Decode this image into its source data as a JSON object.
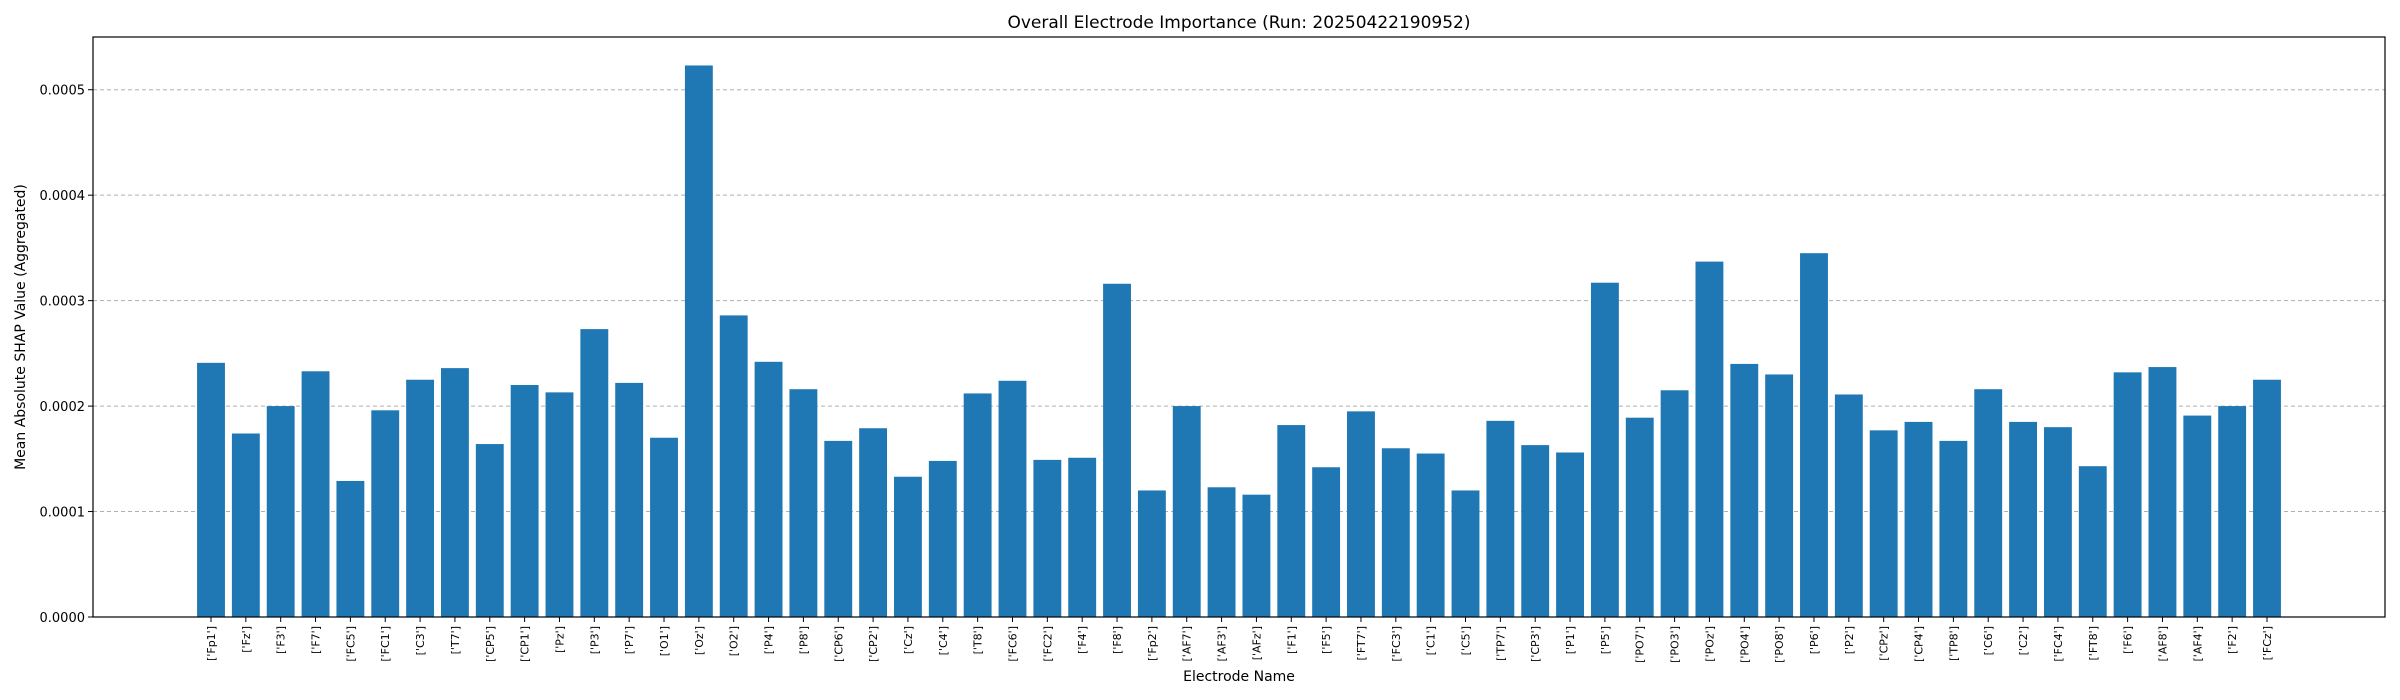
{
  "chart_data": {
    "type": "bar",
    "title": "Overall Electrode Importance (Run: 20250422190952)",
    "xlabel": "Electrode Name",
    "ylabel": "Mean Absolute SHAP Value (Aggregated)",
    "ylim": [
      0,
      0.00055
    ],
    "yticks": [
      "0.0000",
      "0.0001",
      "0.0002",
      "0.0003",
      "0.0004",
      "0.0005"
    ],
    "ytick_values": [
      0,
      0.0001,
      0.0002,
      0.0003,
      0.0004,
      0.0005
    ],
    "grid": true,
    "bar_color": "#1f77b4",
    "categories": [
      "['Fp1']",
      "['Fz']",
      "['F3']",
      "['F7']",
      "['FC5']",
      "['FC1']",
      "['C3']",
      "['T7']",
      "['CP5']",
      "['CP1']",
      "['Pz']",
      "['P3']",
      "['P7']",
      "['O1']",
      "['Oz']",
      "['O2']",
      "['P4']",
      "['P8']",
      "['CP6']",
      "['CP2']",
      "['Cz']",
      "['C4']",
      "['T8']",
      "['FC6']",
      "['FC2']",
      "['F4']",
      "['F8']",
      "['Fp2']",
      "['AF7']",
      "['AF3']",
      "['AFz']",
      "['F1']",
      "['F5']",
      "['FT7']",
      "['FC3']",
      "['C1']",
      "['C5']",
      "['TP7']",
      "['CP3']",
      "['P1']",
      "['P5']",
      "['PO7']",
      "['PO3']",
      "['POz']",
      "['PO4']",
      "['PO8']",
      "['P6']",
      "['P2']",
      "['CPz']",
      "['CP4']",
      "['TP8']",
      "['C6']",
      "['C2']",
      "['FC4']",
      "['FT8']",
      "['F6']",
      "['AF8']",
      "['AF4']",
      "['F2']",
      "['FCz']"
    ],
    "values": [
      0.000241,
      0.000174,
      0.0002,
      0.000233,
      0.000129,
      0.000196,
      0.000225,
      0.000236,
      0.000164,
      0.00022,
      0.000213,
      0.000273,
      0.000222,
      0.00017,
      0.000523,
      0.000286,
      0.000242,
      0.000216,
      0.000167,
      0.000179,
      0.000133,
      0.000148,
      0.000212,
      0.000224,
      0.000149,
      0.000151,
      0.000316,
      0.00012,
      0.0002,
      0.000123,
      0.000116,
      0.000182,
      0.000142,
      0.000195,
      0.00016,
      0.000155,
      0.00012,
      0.000186,
      0.000163,
      0.000156,
      0.000317,
      0.000189,
      0.000215,
      0.000337,
      0.00024,
      0.00023,
      0.000345,
      0.000211,
      0.000177,
      0.000185,
      0.000167,
      0.000216,
      0.000185,
      0.00018,
      0.000143,
      0.000232,
      0.000237,
      0.000191,
      0.0002,
      0.000225
    ]
  }
}
